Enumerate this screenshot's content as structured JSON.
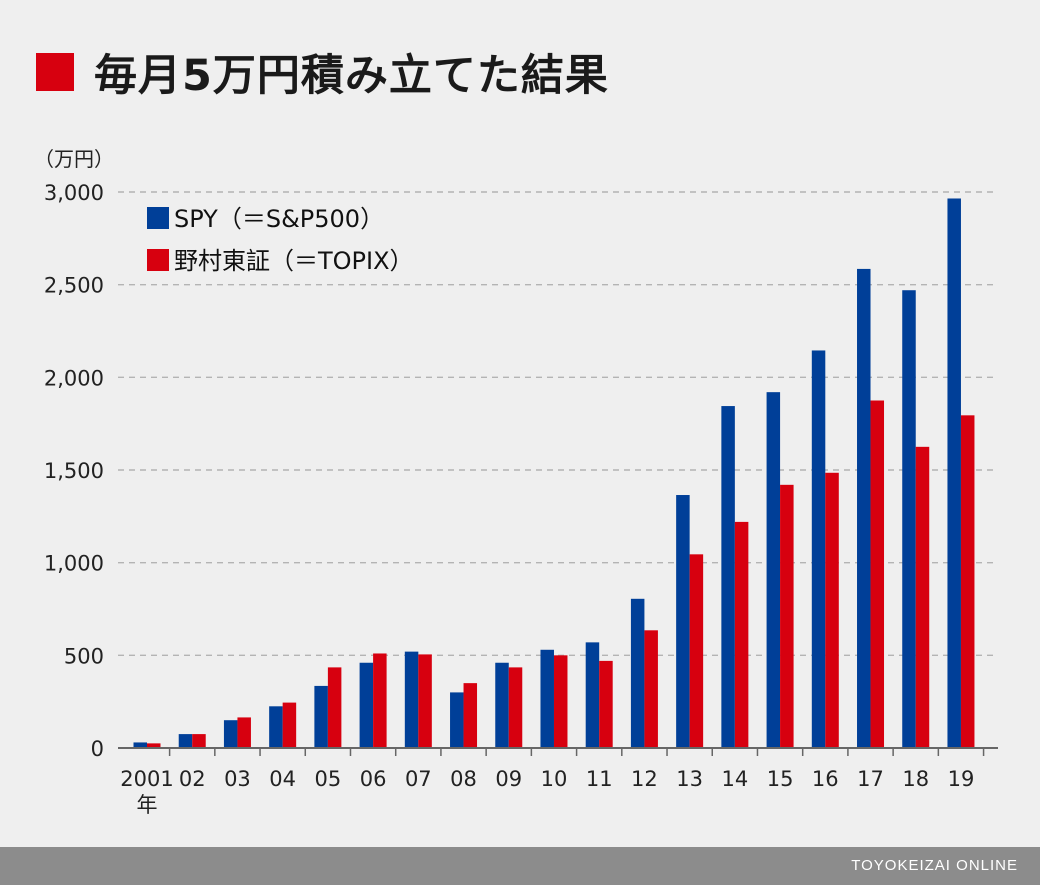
{
  "title": "毎月5万円積み立てた結果",
  "footer": "TOYOKEIZAI ONLINE",
  "colors": {
    "spy": "#003f98",
    "topix": "#d7000f",
    "title_square": "#d7000f"
  },
  "chart_data": {
    "type": "bar",
    "unit_label": "（万円）",
    "x_suffix": "年",
    "categories": [
      "2001",
      "02",
      "03",
      "04",
      "05",
      "06",
      "07",
      "08",
      "09",
      "10",
      "11",
      "12",
      "13",
      "14",
      "15",
      "16",
      "17",
      "18",
      "19"
    ],
    "yticks": [
      "0",
      "500",
      "1,000",
      "1,500",
      "2,000",
      "2,500",
      "3,000"
    ],
    "ylim": [
      0,
      3000
    ],
    "grid": true,
    "legend_position": "top-left",
    "series": [
      {
        "name": "SPY（＝S&P500）",
        "color": "#003f98",
        "values": [
          30,
          75,
          150,
          225,
          335,
          460,
          520,
          300,
          460,
          530,
          570,
          805,
          1365,
          1845,
          1920,
          2145,
          2585,
          2470,
          2965
        ]
      },
      {
        "name": "野村東証（＝TOPIX）",
        "color": "#d7000f",
        "values": [
          25,
          75,
          165,
          245,
          435,
          510,
          505,
          350,
          435,
          500,
          470,
          635,
          1045,
          1220,
          1420,
          1485,
          1875,
          1625,
          1795
        ]
      }
    ]
  }
}
